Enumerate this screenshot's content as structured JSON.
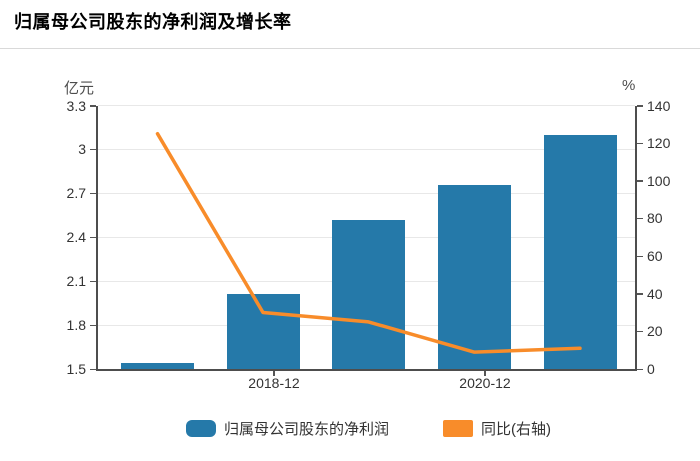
{
  "page": {
    "title": "归属母公司股东的净利润及增长率"
  },
  "chart_data": {
    "type": "bar",
    "title": "归属母公司股东的净利润及增长率",
    "series": [
      {
        "name": "归属母公司股东的净利润",
        "type": "bar",
        "axis": "left",
        "color": "#2579a9",
        "values": [
          1.54,
          2.01,
          2.52,
          2.76,
          3.1
        ]
      },
      {
        "name": "同比(右轴)",
        "type": "line",
        "axis": "right",
        "color": "#f88c2a",
        "values": [
          125,
          30,
          25,
          9,
          11
        ]
      }
    ],
    "x_tick_labels": [
      {
        "label": "2018-12",
        "category_index": 1
      },
      {
        "label": "2020-12",
        "category_index": 3
      }
    ],
    "left_axis": {
      "unit": "亿元",
      "min": 1.5,
      "max": 3.3,
      "tick_labels": [
        "3.3",
        "3",
        "2.7",
        "2.4",
        "2.1",
        "1.8",
        "1.5"
      ],
      "tick_values": [
        3.3,
        3.0,
        2.7,
        2.4,
        2.1,
        1.8,
        1.5
      ]
    },
    "right_axis": {
      "unit": "%",
      "min": 0,
      "max": 140,
      "tick_labels": [
        "140",
        "120",
        "100",
        "80",
        "60",
        "40",
        "20",
        "0"
      ],
      "tick_values": [
        140,
        120,
        100,
        80,
        60,
        40,
        20,
        0
      ]
    },
    "legend": [
      {
        "label": "归属母公司股东的净利润",
        "color": "#2579a9",
        "shape": "roundRect"
      },
      {
        "label": "同比(右轴)",
        "color": "#f88c2a",
        "shape": "rect"
      }
    ],
    "grid_on": true,
    "legend_position": "bottom"
  },
  "colors": {
    "bar": "#2579a9",
    "line": "#f88c2a",
    "axis": "#4d4d4d",
    "grid": "#e8e8e8",
    "text": "#333333"
  }
}
